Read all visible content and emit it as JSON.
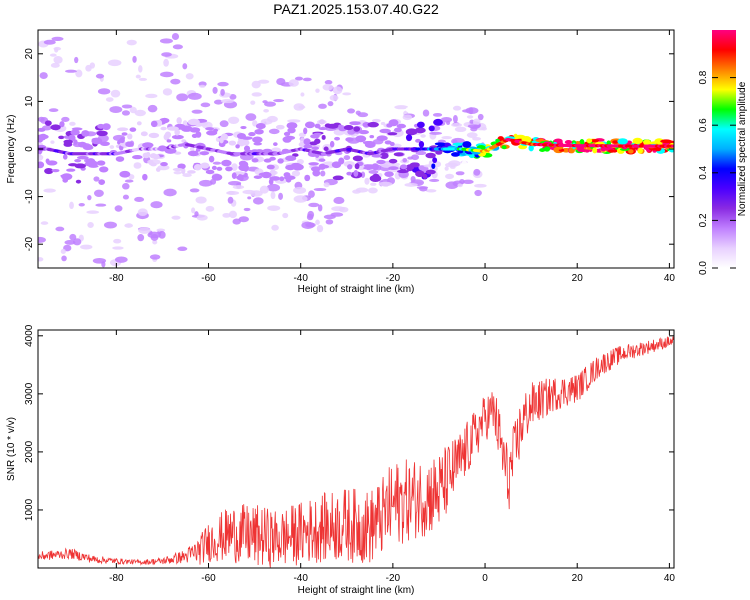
{
  "figure": {
    "title": "PAZ1.2025.153.07.40.G22"
  },
  "chart_data": [
    {
      "type": "heatmap",
      "xlabel": "Height of straight line (km)",
      "ylabel": "Frequency (Hz)",
      "xlim": [
        -97,
        41
      ],
      "ylim": [
        -25,
        25
      ],
      "x_ticks": [
        "-80",
        "-60",
        "-40",
        "-20",
        "0",
        "20",
        "40"
      ],
      "y_ticks": [
        "-20",
        "-10",
        "0",
        "10",
        "20"
      ],
      "colorbar": {
        "label": "Normalized spectral amplitude",
        "range": [
          0,
          1
        ],
        "ticks": [
          "0.0",
          "0.2",
          "0.4",
          "0.6",
          "0.8"
        ],
        "colors": [
          "#ffffff",
          "#e8d0ff",
          "#c080ff",
          "#8a2be2",
          "#4b00ff",
          "#0000ff",
          "#00b0ff",
          "#00ffff",
          "#00ff00",
          "#ffff00",
          "#ff8000",
          "#ff0000",
          "#ff0080"
        ]
      },
      "ridge": {
        "x": [
          -95,
          -90,
          -85,
          -80,
          -75,
          -70,
          -65,
          -60,
          -55,
          -50,
          -45,
          -40,
          -35,
          -30,
          -25,
          -20,
          -15,
          -10,
          -5,
          0,
          5,
          10,
          15,
          20,
          25,
          30,
          35,
          40
        ],
        "frequency": [
          0,
          -1,
          -1,
          -1,
          0,
          0,
          1,
          0,
          -1,
          -1,
          -1,
          0,
          -1,
          0,
          -1,
          0,
          0,
          0,
          0,
          -0.5,
          2,
          1,
          0.8,
          0.7,
          0.7,
          0.6,
          0.6,
          0.6
        ],
        "amplitude": [
          0.2,
          0.25,
          0.22,
          0.2,
          0.12,
          0.14,
          0.16,
          0.18,
          0.18,
          0.2,
          0.18,
          0.2,
          0.22,
          0.25,
          0.22,
          0.22,
          0.3,
          0.4,
          0.6,
          0.75,
          0.9,
          0.9,
          0.95,
          0.95,
          0.95,
          0.95,
          0.95,
          0.95
        ]
      }
    },
    {
      "type": "line",
      "xlabel": "Height of straight line (km)",
      "ylabel": "SNR (10 * v/v)",
      "xlim": [
        -97,
        41
      ],
      "ylim": [
        0,
        4100
      ],
      "x_ticks": [
        "-80",
        "-60",
        "-40",
        "-20",
        "0",
        "20",
        "40"
      ],
      "y_ticks": [
        "1000",
        "2000",
        "3000",
        "4000"
      ],
      "color": "#ee3333",
      "series": [
        {
          "x": [
            -97,
            -90,
            -85,
            -80,
            -75,
            -70,
            -65,
            -62,
            -60,
            -55,
            -50,
            -45,
            -40,
            -35,
            -30,
            -25,
            -22,
            -20,
            -15,
            -10,
            -5,
            -2,
            0,
            2,
            5,
            8,
            10,
            15,
            20,
            25,
            30,
            35,
            40,
            41
          ],
          "snr": [
            200,
            250,
            150,
            120,
            100,
            120,
            200,
            300,
            450,
            600,
            550,
            500,
            600,
            700,
            750,
            700,
            900,
            1100,
            1200,
            1300,
            1900,
            2300,
            2600,
            2700,
            1500,
            2500,
            2800,
            3000,
            3100,
            3500,
            3700,
            3800,
            3900,
            3900
          ],
          "spread": [
            80,
            90,
            70,
            50,
            40,
            60,
            120,
            250,
            350,
            500,
            550,
            500,
            550,
            600,
            650,
            650,
            700,
            750,
            700,
            700,
            500,
            450,
            400,
            450,
            600,
            500,
            400,
            300,
            250,
            200,
            150,
            120,
            100,
            100
          ]
        }
      ]
    }
  ]
}
